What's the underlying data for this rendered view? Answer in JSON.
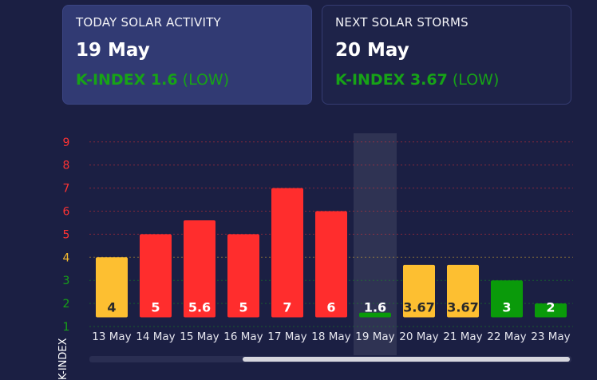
{
  "today_card": {
    "title": "TODAY SOLAR ACTIVITY",
    "date": "19 May",
    "k_label": "K-INDEX 1.6",
    "k_level": "(LOW)"
  },
  "next_card": {
    "title": "NEXT SOLAR STORMS",
    "date": "20 May",
    "k_label": "K-INDEX 3.67",
    "k_level": "(LOW)"
  },
  "chart_data": {
    "type": "bar",
    "ylabel": "K-INDEX",
    "y_ticks": [
      1,
      2,
      3,
      4,
      5,
      6,
      7,
      8,
      9
    ],
    "y_tick_colors": {
      "1": "#17a317",
      "2": "#17a317",
      "3": "#17a317",
      "4": "#f7bc2f",
      "5": "#ff3333",
      "6": "#ff3333",
      "7": "#ff3333",
      "8": "#ff3333",
      "9": "#ff3333"
    },
    "ylim": [
      1,
      9
    ],
    "grid": true,
    "highlighted_category": "19 May",
    "categories": [
      "13 May",
      "14 May",
      "15 May",
      "16 May",
      "17 May",
      "18 May",
      "19 May",
      "20 May",
      "21 May",
      "22 May",
      "23 May"
    ],
    "values": [
      4,
      5,
      5.6,
      5,
      7,
      6,
      1.6,
      3.67,
      3.67,
      3,
      2
    ],
    "value_labels": [
      "4",
      "5",
      "5.6",
      "5",
      "7",
      "6",
      "1.6",
      "3.67",
      "3.67",
      "3",
      "2"
    ],
    "bar_colors": [
      "#fdbf31",
      "#ff2d2d",
      "#ff2d2d",
      "#ff2d2d",
      "#ff2d2d",
      "#ff2d2d",
      "#0a9a0a",
      "#fdbf31",
      "#fdbf31",
      "#0a9a0a",
      "#0a9a0a"
    ],
    "label_colors": [
      "#2a2a2a",
      "#ffffff",
      "#ffffff",
      "#ffffff",
      "#ffffff",
      "#ffffff",
      "#ffffff",
      "#2a2a2a",
      "#2a2a2a",
      "#ffffff",
      "#ffffff"
    ]
  }
}
